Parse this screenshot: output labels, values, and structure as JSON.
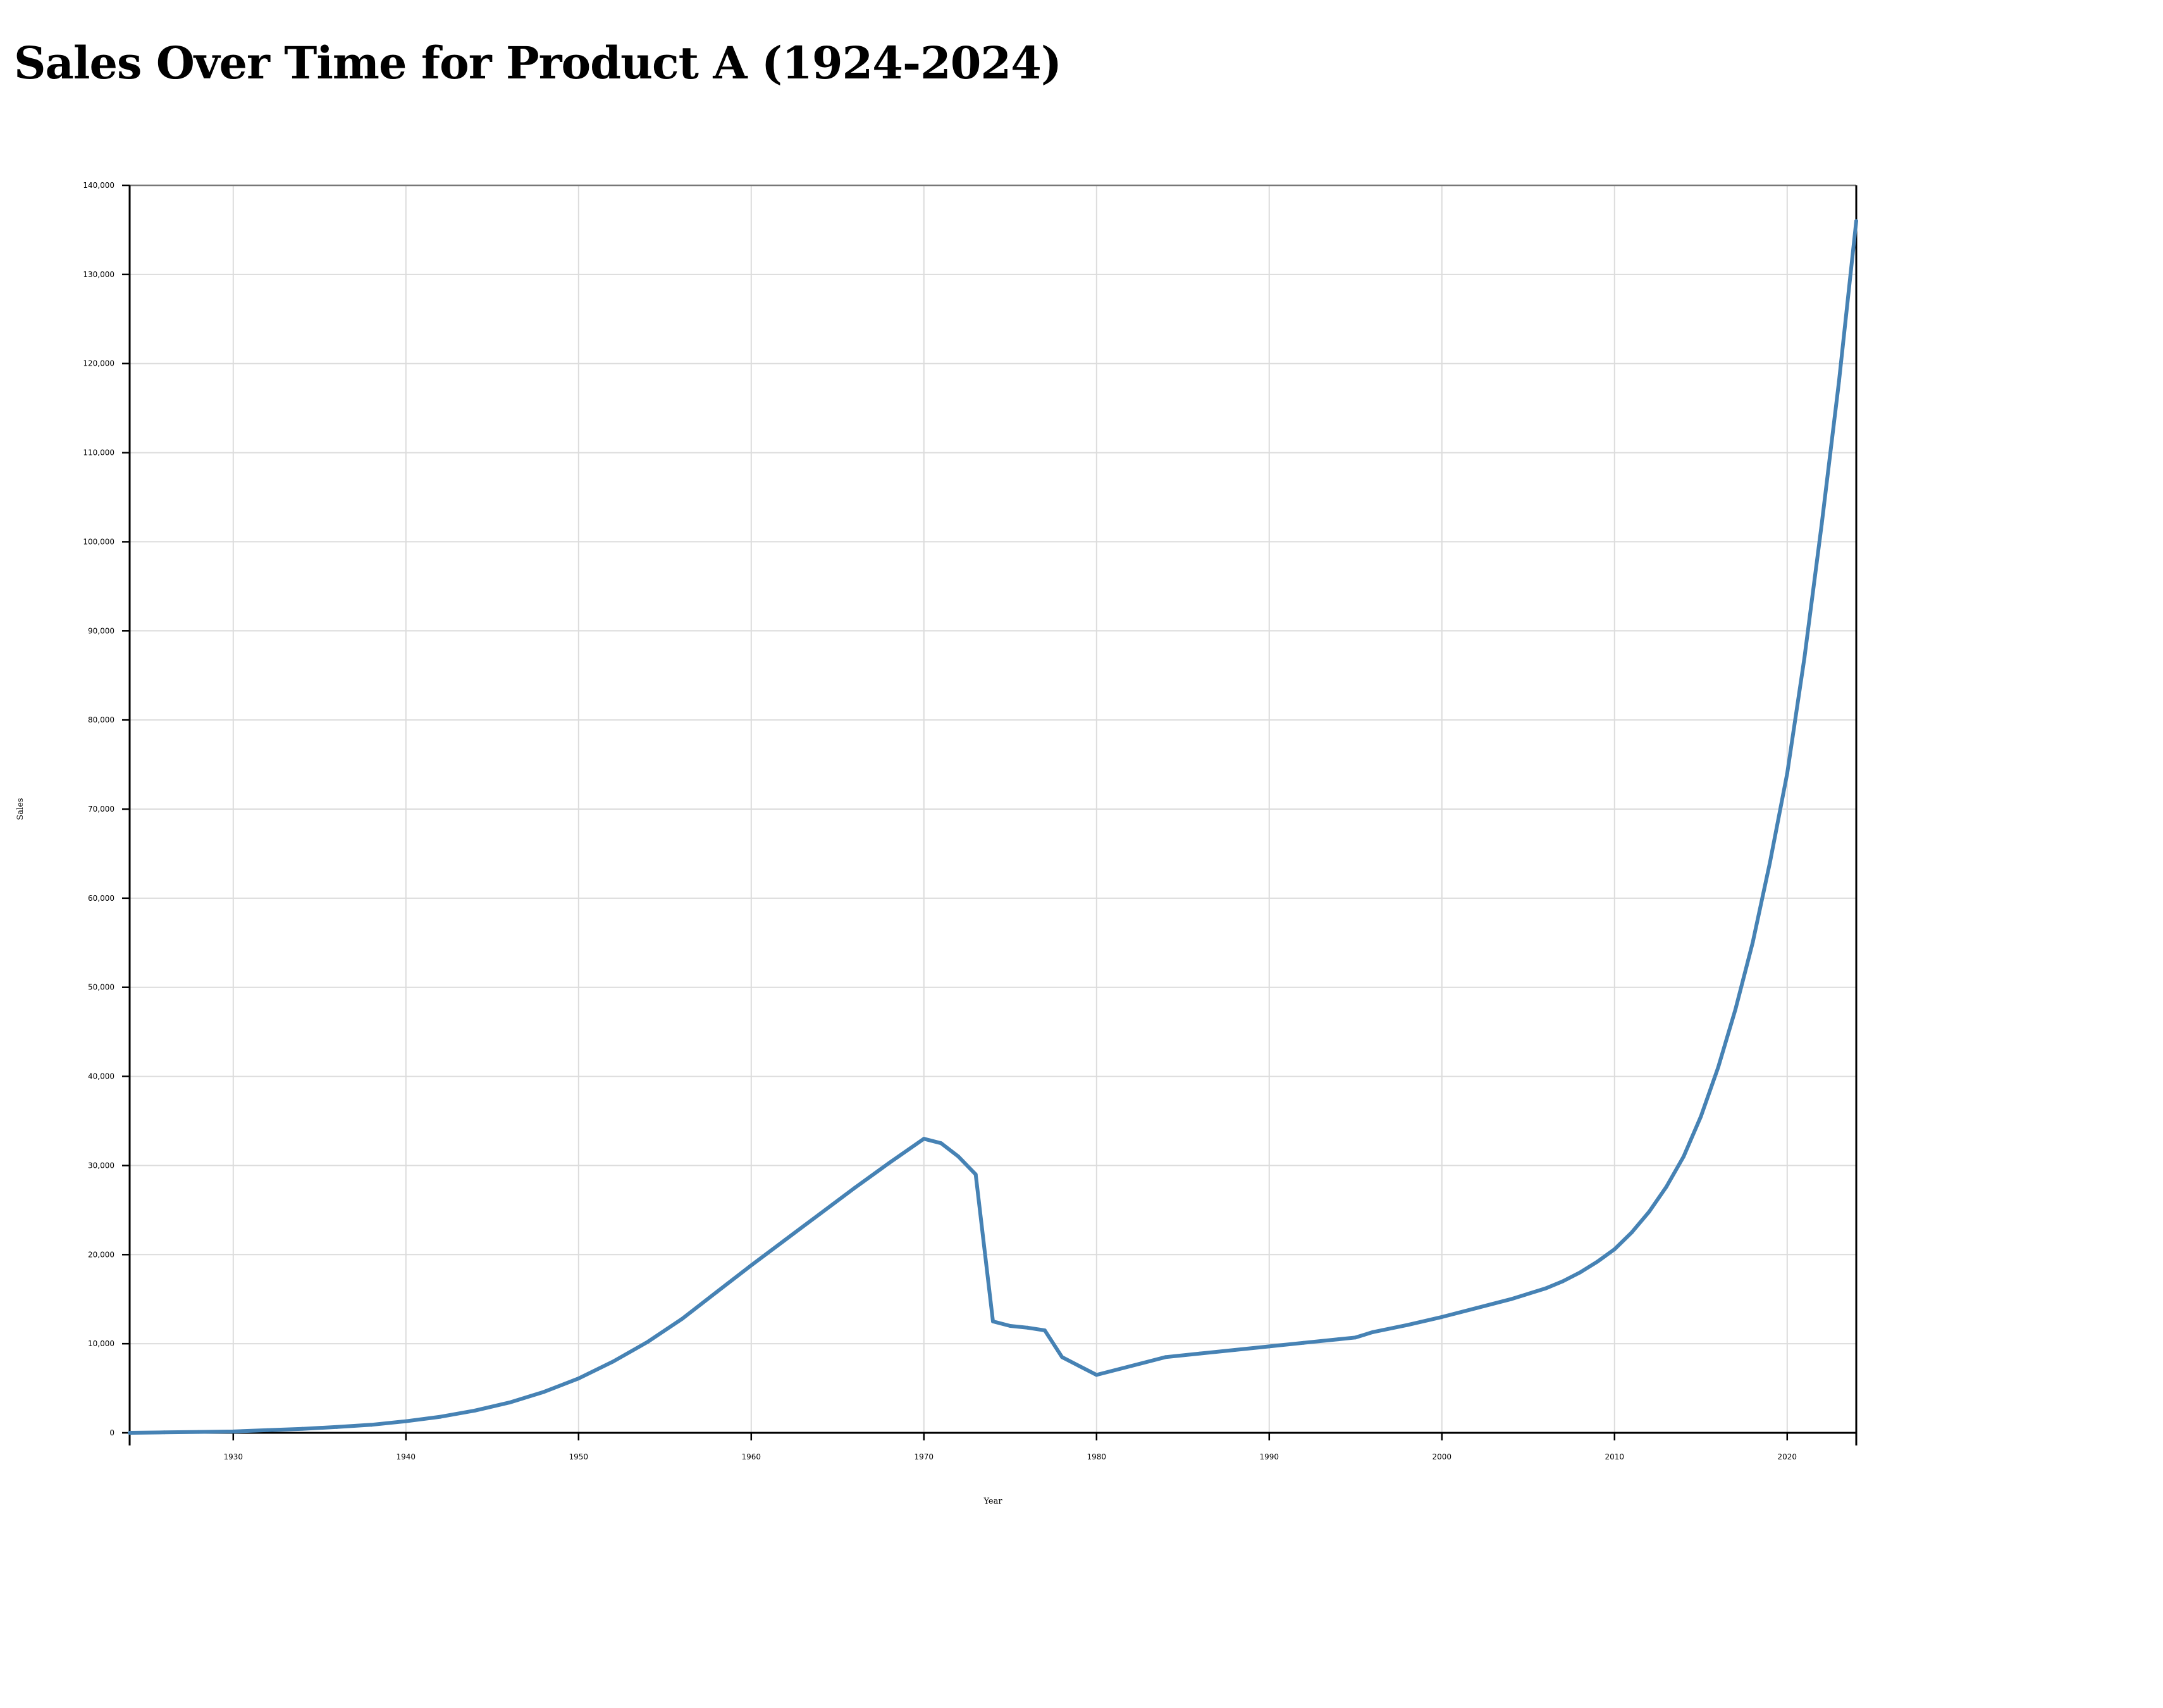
{
  "title": "Sales Over Time for Product A (1924-2024)",
  "chart_data": {
    "type": "line",
    "title": "Sales Over Time for Product A (1924-2024)",
    "xlabel": "Year",
    "ylabel": "Sales",
    "xlim": [
      1924,
      2024
    ],
    "ylim": [
      0,
      140000
    ],
    "x_ticks": [
      1930,
      1940,
      1950,
      1960,
      1970,
      1980,
      1990,
      2000,
      2010,
      2020
    ],
    "y_ticks": [
      0,
      10000,
      20000,
      30000,
      40000,
      50000,
      60000,
      70000,
      80000,
      90000,
      100000,
      110000,
      120000,
      130000,
      140000
    ],
    "y_tick_labels": [
      "0",
      "10,000",
      "20,000",
      "30,000",
      "40,000",
      "50,000",
      "60,000",
      "70,000",
      "80,000",
      "90,000",
      "100,000",
      "110,000",
      "120,000",
      "130,000",
      "140,000"
    ],
    "grid": true,
    "line_color": "#4682b4",
    "series": [
      {
        "x": [
          1924,
          1926,
          1928,
          1930,
          1932,
          1934,
          1936,
          1938,
          1940,
          1942,
          1944,
          1946,
          1948,
          1950,
          1952,
          1954,
          1956,
          1958,
          1960,
          1962,
          1964,
          1966,
          1968,
          1970,
          1971,
          1972,
          1973,
          1974,
          1975,
          1976,
          1977,
          1978,
          1979,
          1980,
          1982,
          1984,
          1986,
          1988,
          1990,
          1992,
          1994,
          1995,
          1996,
          1998,
          2000,
          2002,
          2004,
          2006,
          2007,
          2008,
          2009,
          2010,
          2011,
          2012,
          2013,
          2014,
          2015,
          2016,
          2017,
          2018,
          2019,
          2020,
          2021,
          2022,
          2023,
          2024
        ],
        "values": [
          0,
          50,
          100,
          150,
          300,
          450,
          650,
          900,
          1300,
          1800,
          2500,
          3400,
          4600,
          6100,
          8000,
          10200,
          12800,
          15800,
          18800,
          21700,
          24600,
          27500,
          30300,
          33000,
          32500,
          31000,
          29000,
          12500,
          12000,
          11800,
          11500,
          8500,
          7500,
          6500,
          7500,
          8500,
          8900,
          9300,
          9700,
          10100,
          10500,
          10700,
          11300,
          12100,
          13000,
          14000,
          15000,
          16200,
          17000,
          18000,
          19200,
          20600,
          22500,
          24800,
          27600,
          31000,
          35500,
          41000,
          47500,
          55000,
          64000,
          74000,
          87000,
          102000,
          118000,
          136000
        ]
      }
    ]
  }
}
